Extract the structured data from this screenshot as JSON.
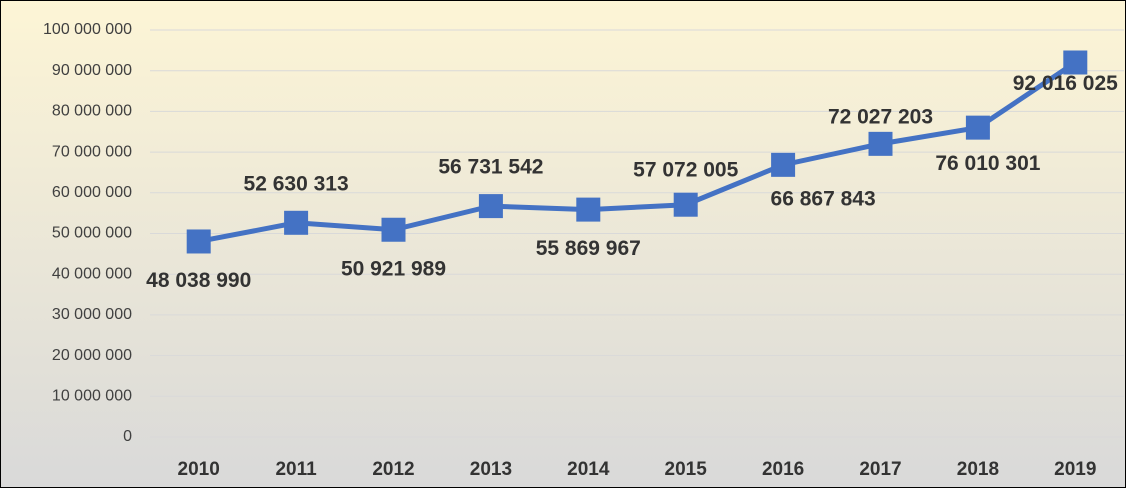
{
  "chart_data": {
    "type": "line",
    "categories": [
      "2010",
      "2011",
      "2012",
      "2013",
      "2014",
      "2015",
      "2016",
      "2017",
      "2018",
      "2019"
    ],
    "series": [
      {
        "color": "#4472c4",
        "values": [
          48038990,
          52630313,
          50921989,
          56731542,
          55869967,
          57072005,
          66867843,
          72027203,
          76010301,
          92016025
        ],
        "value_labels": [
          "48 038 990",
          "52 630 313",
          "50 921 989",
          "56 731 542",
          "55 869 967",
          "57 072 005",
          "66 867 843",
          "72 027 203",
          "76 010 301",
          "92 016 025"
        ]
      }
    ],
    "ylim": [
      0,
      100000000
    ],
    "yticks": [
      0,
      {
        "value": 10000000,
        "label": "10 000 000"
      },
      {
        "value": 20000000,
        "label": "20 000 000"
      },
      {
        "value": 30000000,
        "label": "30 000 000"
      },
      {
        "value": 40000000,
        "label": "40 000 000"
      },
      {
        "value": 50000000,
        "label": "50 000 000"
      },
      {
        "value": 60000000,
        "label": "60 000 000"
      },
      {
        "value": 70000000,
        "label": "70 000 000"
      },
      {
        "value": 80000000,
        "label": "80 000 000"
      },
      {
        "value": 90000000,
        "label": "90 000 000"
      },
      {
        "value": 100000000,
        "label": "100 000 000"
      }
    ],
    "grid": true
  }
}
